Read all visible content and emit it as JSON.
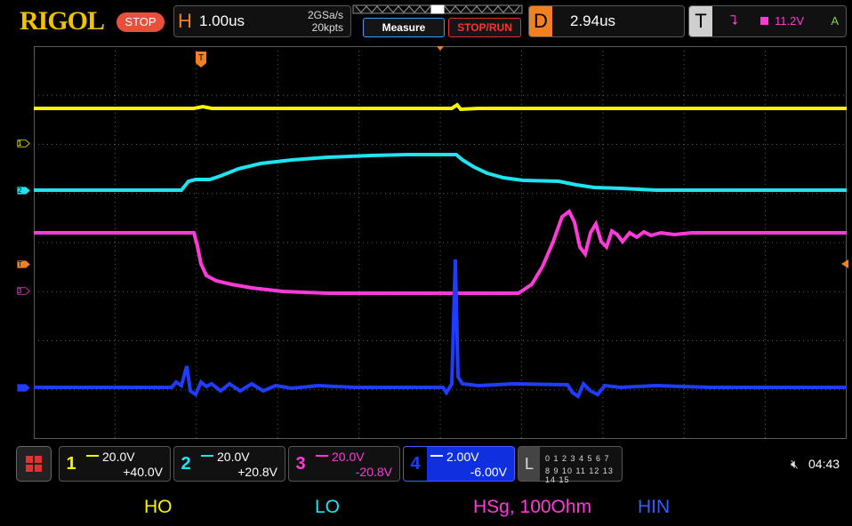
{
  "brand": "RIGOL",
  "run_state": "STOP",
  "horizontal": {
    "letter": "H",
    "timebase": "1.00us",
    "sample_rate": "2GSa/s",
    "memory_depth": "20kpts"
  },
  "buttons": {
    "measure": "Measure",
    "stop_run": "STOP/RUN"
  },
  "delay": {
    "letter": "D",
    "value": "2.94us"
  },
  "trigger": {
    "letter": "T",
    "edge_symbol": "⮧",
    "level": "11.2V",
    "mode": "A",
    "marker": "T"
  },
  "channels": [
    {
      "num": "1",
      "scale": "20.0V",
      "offset": "+40.0V",
      "color": "#f5f500",
      "marker": "1"
    },
    {
      "num": "2",
      "scale": "20.0V",
      "offset": "+20.8V",
      "color": "#1ee3f0",
      "marker": "2"
    },
    {
      "num": "3",
      "scale": "20.0V",
      "offset": "-20.8V",
      "color": "#ff3ad8",
      "marker": "3"
    },
    {
      "num": "4",
      "scale": "2.00V",
      "offset": "-6.00V",
      "color": "#1f3cff",
      "marker": ""
    }
  ],
  "logic": {
    "letter": "L",
    "row1": "0 1 2 3  4 5 6 7",
    "row2": "8 9 10 11 12 13 14 15"
  },
  "status": {
    "speaker_icon": "speaker-muted",
    "clock": "04:43"
  },
  "trace_labels": {
    "ho": "HO",
    "lo": "LO",
    "hsg": "HSg, 100Ohm",
    "hin": "HIN"
  },
  "colors": {
    "grid": "#5a5a5a",
    "trigger_orange": "#f08020",
    "ch1": "#f5f500",
    "ch2": "#1ee3f0",
    "ch3": "#ff3ad8",
    "ch4": "#1f3cff",
    "stop_red": "#e9503c"
  }
}
